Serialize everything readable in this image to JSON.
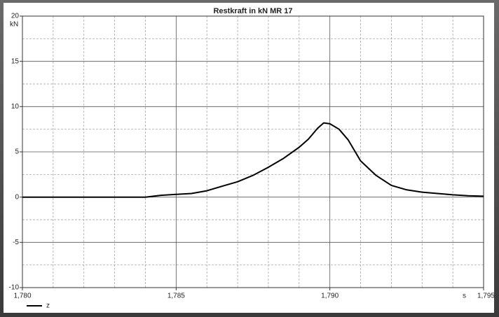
{
  "chart_data": {
    "type": "line",
    "title": "Restkraft in kN MR 17",
    "y_label": "kN",
    "x_label": "s",
    "x": [
      1.78,
      1.781,
      1.782,
      1.783,
      1.784,
      1.7845,
      1.785,
      1.7855,
      1.786,
      1.7865,
      1.787,
      1.7875,
      1.788,
      1.7885,
      1.789,
      1.7893,
      1.7896,
      1.7898,
      1.79,
      1.7903,
      1.7906,
      1.791,
      1.7915,
      1.792,
      1.7925,
      1.793,
      1.7935,
      1.794,
      1.7945,
      1.795
    ],
    "series": [
      {
        "name": "z",
        "color": "#000000",
        "values": [
          0,
          0,
          0,
          0,
          0,
          0.2,
          0.3,
          0.4,
          0.7,
          1.2,
          1.7,
          2.4,
          3.3,
          4.3,
          5.5,
          6.4,
          7.6,
          8.2,
          8.1,
          7.5,
          6.3,
          4.0,
          2.4,
          1.3,
          0.8,
          0.55,
          0.4,
          0.25,
          0.15,
          0.1
        ]
      }
    ],
    "xlim": [
      1.78,
      1.795
    ],
    "xticks": [
      {
        "value": 1.78,
        "label": "1,780"
      },
      {
        "value": 1.785,
        "label": "1,785"
      },
      {
        "value": 1.79,
        "label": "1,790"
      },
      {
        "value": 1.795,
        "label": "1,795"
      }
    ],
    "xminorticks": [
      1.781,
      1.782,
      1.783,
      1.784,
      1.786,
      1.787,
      1.788,
      1.789,
      1.791,
      1.792,
      1.793,
      1.794
    ],
    "ylim": [
      -10,
      20
    ],
    "yticks": [
      -10,
      -5,
      0,
      5,
      10,
      15,
      20
    ],
    "yminorticks": [
      -7.5,
      -2.5,
      2.5,
      7.5,
      12.5,
      17.5
    ],
    "grid": true,
    "legend": "bottom-left"
  }
}
